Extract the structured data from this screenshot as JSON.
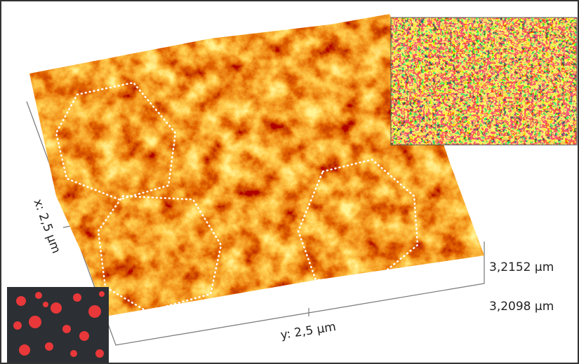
{
  "labels": {
    "x_axis": "x: 2,5 µm",
    "y_axis": "y: 2,5 µm",
    "z_max": "3,2152 µm",
    "z_min": "3,2098 µm"
  }
}
